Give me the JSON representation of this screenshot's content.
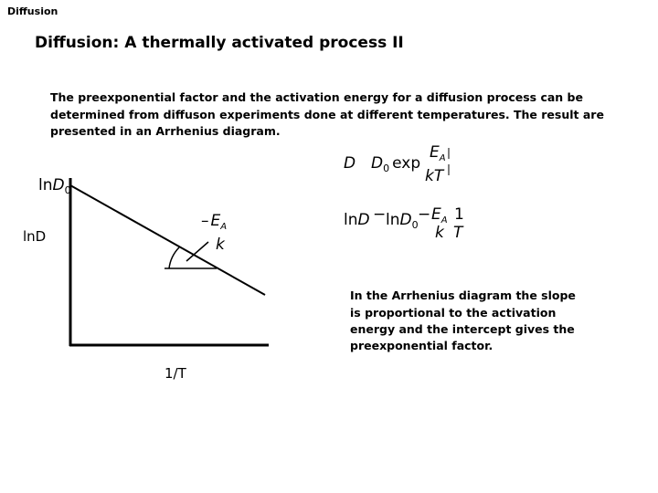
{
  "header": "Diffusion",
  "title": "Diffusion: A thermally activated process II",
  "intro": [
    "The preexponential factor and the activation energy for a diffusion process can be",
    "determined from diffuson experiments done at different temperatures. The result are",
    "presented in an Arrhenius diagram."
  ],
  "diagram": {
    "y_label": "lnD",
    "x_label": "1/T",
    "intercept_label": {
      "base": "ln",
      "symbol": "D",
      "sub": "0"
    },
    "slope_label": {
      "sign": "–",
      "symbol": "E",
      "sub": "A",
      "den": "k"
    }
  },
  "equation_1": {
    "lhs": "D",
    "rhs_symbol": "D",
    "rhs_sub": "0",
    "func": "exp",
    "num_symbol": "E",
    "num_sub": "A",
    "den": "kT"
  },
  "equation_2": {
    "ln1": "ln",
    "sym1": "D",
    "op1": "−",
    "ln2": "ln",
    "sym2": "D",
    "sub2": "0",
    "op2": "−",
    "num_symbol": "E",
    "num_sub": "A",
    "den": "k",
    "num2": "1",
    "den2": "T"
  },
  "caption": [
    "In the Arrhenius diagram the slope",
    "is proportional to the activation",
    "energy and the intercept gives the",
    "preexponential factor."
  ]
}
